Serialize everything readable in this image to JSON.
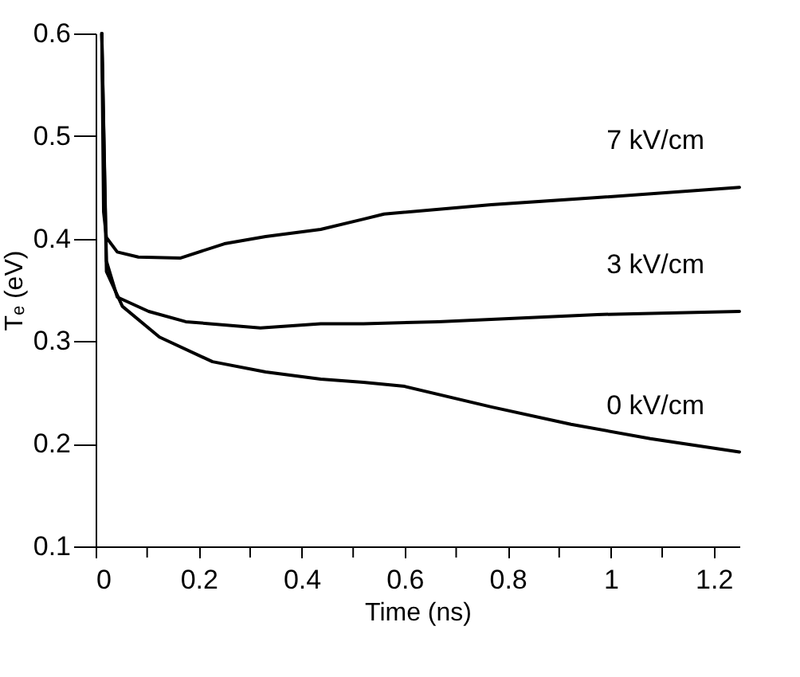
{
  "chart_data": {
    "type": "line",
    "xlabel": "Time (ns)",
    "ylabel": "Tₑ (eV)",
    "xlim": [
      0,
      1.25
    ],
    "ylim": [
      0.1,
      0.6
    ],
    "xticks": [
      0,
      {
        "value": 0.1,
        "label": null
      },
      0.2,
      {
        "value": 0.3,
        "label": null
      },
      0.4,
      {
        "value": 0.5,
        "label": null
      },
      0.6,
      {
        "value": 0.7,
        "label": null
      },
      0.8,
      {
        "value": 0.9,
        "label": null
      },
      1,
      {
        "value": 1.1,
        "label": null
      },
      1.2
    ],
    "yticks": [
      0.1,
      0.2,
      0.3,
      0.4,
      0.5,
      0.6
    ],
    "grid": false,
    "marker": "none",
    "line_style": "solid",
    "series": [
      {
        "color": "#000000",
        "x": [
          0.012,
          0.0155,
          0.021,
          0.042,
          0.083,
          0.164,
          0.25,
          0.33,
          0.437,
          0.52,
          0.56,
          0.768,
          0.974,
          1.25
        ],
        "values": [
          0.6,
          0.426,
          0.401,
          0.387,
          0.382,
          0.381,
          0.395,
          0.402,
          0.409,
          0.419,
          0.424,
          0.433,
          0.44,
          0.45
        ]
      },
      {
        "color": "#000000",
        "x": [
          0.012,
          0.021,
          0.042,
          0.103,
          0.175,
          0.32,
          0.437,
          0.52,
          0.665,
          0.974,
          1.25
        ],
        "values": [
          0.6,
          0.378,
          0.343,
          0.329,
          0.319,
          0.313,
          0.317,
          0.317,
          0.319,
          0.326,
          0.329
        ]
      },
      {
        "color": "#000000",
        "x": [
          0.012,
          0.021,
          0.052,
          0.124,
          0.227,
          0.33,
          0.437,
          0.52,
          0.6,
          0.768,
          0.923,
          1.077,
          1.25
        ],
        "values": [
          0.6,
          0.368,
          0.334,
          0.304,
          0.28,
          0.27,
          0.263,
          0.26,
          0.256,
          0.236,
          0.219,
          0.205,
          0.192
        ]
      }
    ],
    "annotations": [
      "7 kV/cm",
      "3 kV/cm",
      "0 kV/cm"
    ]
  }
}
